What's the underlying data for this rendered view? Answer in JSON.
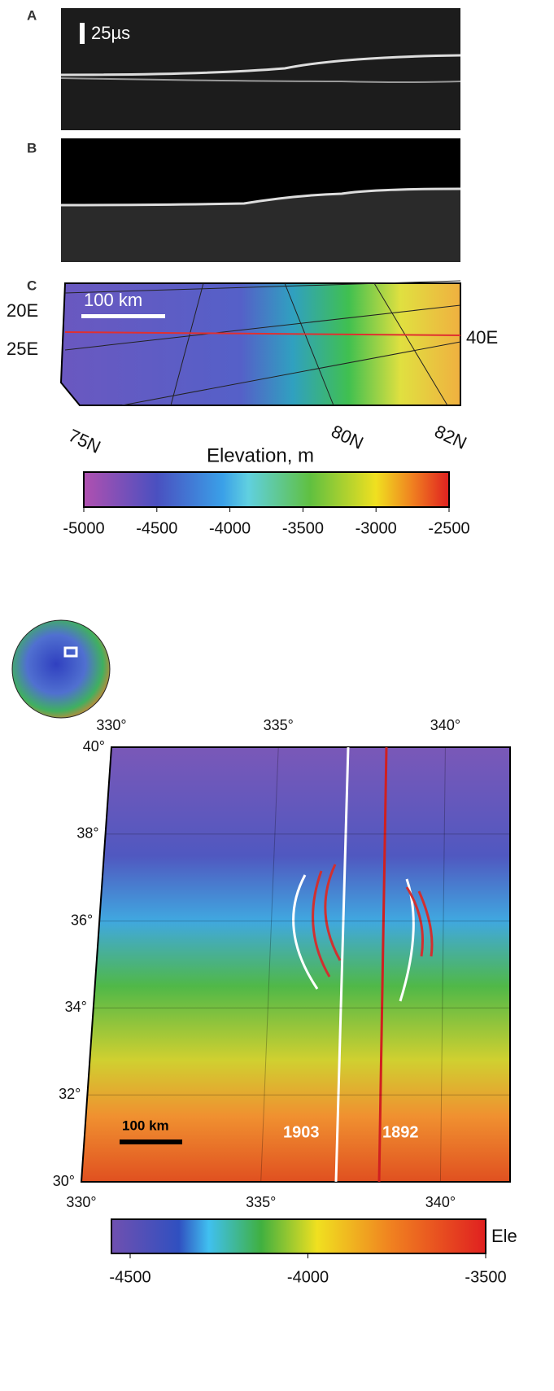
{
  "panel_a": {
    "letter": "A",
    "scale": "25µs"
  },
  "panel_b": {
    "letter": "B"
  },
  "panel_c": {
    "letter": "C",
    "scale": "100 km",
    "lon_labels": [
      "20E",
      "25E",
      "40E"
    ],
    "lat_labels": [
      "75N",
      "80N",
      "82N"
    ]
  },
  "colorbar_1": {
    "label": "Elevation, m",
    "lim": [
      -5000,
      -2500
    ],
    "ticks": [
      -5000,
      -4500,
      -4000,
      -3500,
      -3000,
      -2500
    ]
  },
  "map_2": {
    "xlim": [
      330,
      341.7
    ],
    "ylim": [
      30,
      40
    ],
    "xticks": [
      {
        "value": 330,
        "label": "330°"
      },
      {
        "value": 335,
        "label": "335°"
      },
      {
        "value": 340,
        "label": "340°"
      }
    ],
    "yticks": [
      {
        "value": 40,
        "label": "40°"
      },
      {
        "value": 38,
        "label": "38°"
      },
      {
        "value": 36,
        "label": "36°"
      },
      {
        "value": 34,
        "label": "34°"
      },
      {
        "value": 32,
        "label": "32°"
      },
      {
        "value": 30,
        "label": "30°"
      }
    ],
    "scale": "100 km",
    "track_labels": [
      "1903",
      "1892"
    ]
  },
  "colorbar_2": {
    "label": "Ele",
    "lim": [
      -4500,
      -3500
    ],
    "ticks": [
      -4500,
      -4000,
      -3500
    ]
  }
}
